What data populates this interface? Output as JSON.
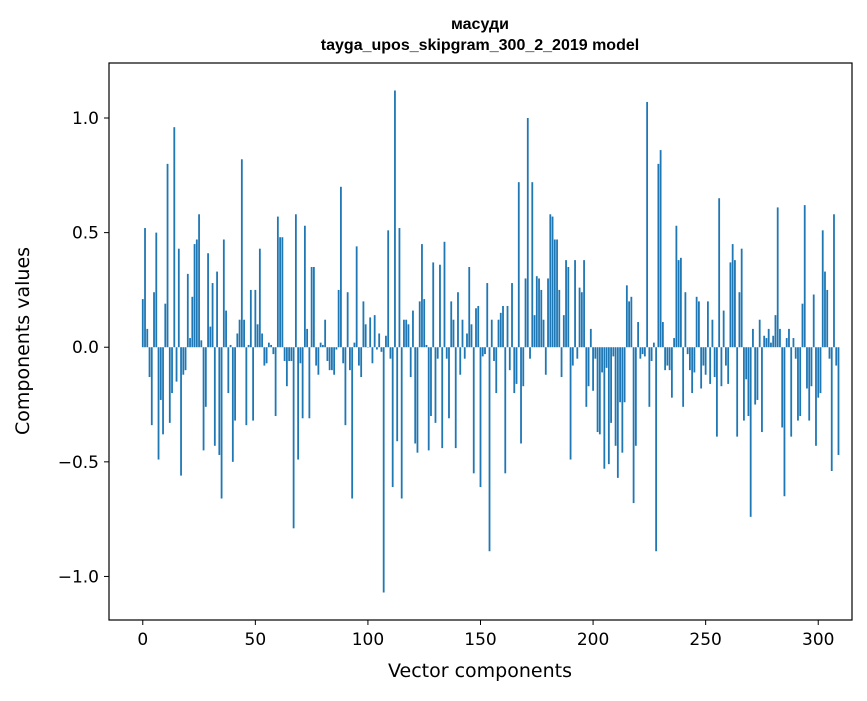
{
  "chart_data": {
    "type": "bar",
    "title": [
      "масуди",
      "tayga_upos_skipgram_300_2_2019 model"
    ],
    "xlabel": "Vector components",
    "ylabel": "Components values",
    "xlim": [
      -15,
      315
    ],
    "ylim": [
      -1.19,
      1.24
    ],
    "xticks": [
      0,
      50,
      100,
      150,
      200,
      250,
      300
    ],
    "xtick_labels": [
      "0",
      "50",
      "100",
      "150",
      "200",
      "250",
      "300"
    ],
    "yticks": [
      -1.0,
      -0.5,
      0.0,
      0.5,
      1.0
    ],
    "ytick_labels": [
      "−1.0",
      "−0.5",
      "0.0",
      "0.5",
      "1.0"
    ],
    "bar_color": "#1f77b4",
    "grid": false,
    "values": [
      0.21,
      0.52,
      0.08,
      -0.13,
      -0.34,
      0.24,
      0.5,
      -0.49,
      -0.23,
      -0.38,
      0.19,
      0.8,
      -0.33,
      -0.2,
      0.96,
      -0.15,
      0.43,
      -0.56,
      -0.12,
      -0.1,
      0.32,
      0.04,
      0.22,
      0.45,
      0.47,
      0.58,
      0.03,
      -0.45,
      -0.26,
      0.41,
      0.09,
      0.28,
      -0.43,
      0.33,
      -0.47,
      -0.66,
      0.47,
      0.16,
      -0.2,
      0.01,
      -0.5,
      -0.32,
      0.06,
      0.12,
      0.82,
      0.12,
      -0.34,
      0.01,
      0.25,
      -0.32,
      0.25,
      0.1,
      0.43,
      0.06,
      -0.08,
      -0.07,
      0.02,
      0.01,
      -0.03,
      -0.3,
      0.57,
      0.48,
      0.48,
      -0.06,
      -0.17,
      -0.06,
      -0.06,
      -0.79,
      0.58,
      -0.49,
      -0.07,
      -0.31,
      0.53,
      0.08,
      -0.31,
      0.35,
      0.35,
      -0.08,
      -0.12,
      0.02,
      0.01,
      0.12,
      -0.06,
      -0.1,
      -0.1,
      -0.12,
      -0.01,
      0.25,
      0.7,
      -0.07,
      -0.34,
      0.24,
      -0.1,
      -0.66,
      0.02,
      0.44,
      -0.08,
      -0.13,
      0.2,
      0.1,
      0.0,
      0.13,
      -0.07,
      0.14,
      -0.01,
      0.06,
      -0.02,
      -1.07,
      0.05,
      0.51,
      -0.05,
      -0.61,
      1.12,
      -0.41,
      0.52,
      -0.66,
      0.12,
      0.12,
      0.1,
      -0.13,
      0.16,
      -0.42,
      -0.46,
      0.2,
      0.45,
      0.21,
      0.01,
      -0.45,
      -0.3,
      0.37,
      -0.33,
      -0.05,
      0.36,
      -0.44,
      0.46,
      -0.05,
      -0.31,
      0.2,
      0.12,
      -0.44,
      0.24,
      -0.12,
      0.12,
      -0.05,
      0.06,
      0.35,
      0.1,
      -0.55,
      0.17,
      0.18,
      -0.61,
      -0.04,
      -0.03,
      0.28,
      -0.89,
      0.12,
      -0.06,
      -0.2,
      0.12,
      0.15,
      0.18,
      -0.55,
      0.18,
      -0.1,
      0.28,
      -0.2,
      -0.16,
      0.72,
      -0.42,
      -0.17,
      0.3,
      1.0,
      -0.05,
      0.72,
      0.14,
      0.31,
      0.3,
      0.25,
      0.12,
      -0.12,
      0.3,
      0.58,
      0.57,
      0.47,
      0.47,
      0.25,
      -0.13,
      0.14,
      0.38,
      0.35,
      -0.49,
      -0.08,
      0.38,
      -0.05,
      0.26,
      0.24,
      0.38,
      -0.26,
      -0.17,
      0.08,
      -0.19,
      -0.05,
      -0.37,
      -0.38,
      -0.11,
      -0.53,
      -0.09,
      -0.51,
      -0.33,
      -0.04,
      -0.43,
      -0.57,
      -0.24,
      -0.46,
      -0.24,
      0.27,
      0.2,
      0.22,
      -0.68,
      -0.43,
      0.11,
      -0.05,
      -0.03,
      -0.04,
      1.07,
      -0.26,
      -0.06,
      0.02,
      -0.89,
      0.8,
      0.86,
      0.11,
      -0.1,
      -0.08,
      -0.1,
      -0.22,
      0.04,
      0.53,
      0.38,
      0.39,
      -0.26,
      0.24,
      -0.03,
      -0.1,
      -0.2,
      -0.11,
      0.22,
      0.2,
      -0.18,
      -0.08,
      -0.12,
      0.2,
      -0.16,
      0.12,
      -0.13,
      -0.39,
      0.65,
      -0.17,
      0.16,
      -0.08,
      -0.16,
      0.37,
      0.45,
      0.38,
      -0.39,
      0.24,
      0.43,
      -0.32,
      -0.14,
      -0.3,
      -0.74,
      0.08,
      -0.25,
      -0.23,
      0.12,
      -0.37,
      0.05,
      0.04,
      0.08,
      0.02,
      0.05,
      0.14,
      0.61,
      0.08,
      -0.35,
      -0.65,
      0.04,
      0.08,
      -0.39,
      0.04,
      -0.05,
      -0.32,
      -0.3,
      0.19,
      0.62,
      -0.18,
      -0.32,
      -0.17,
      0.23,
      -0.43,
      -0.22,
      -0.2,
      0.51,
      0.33,
      0.25,
      -0.05,
      -0.54,
      0.58,
      -0.08,
      -0.47
    ]
  }
}
